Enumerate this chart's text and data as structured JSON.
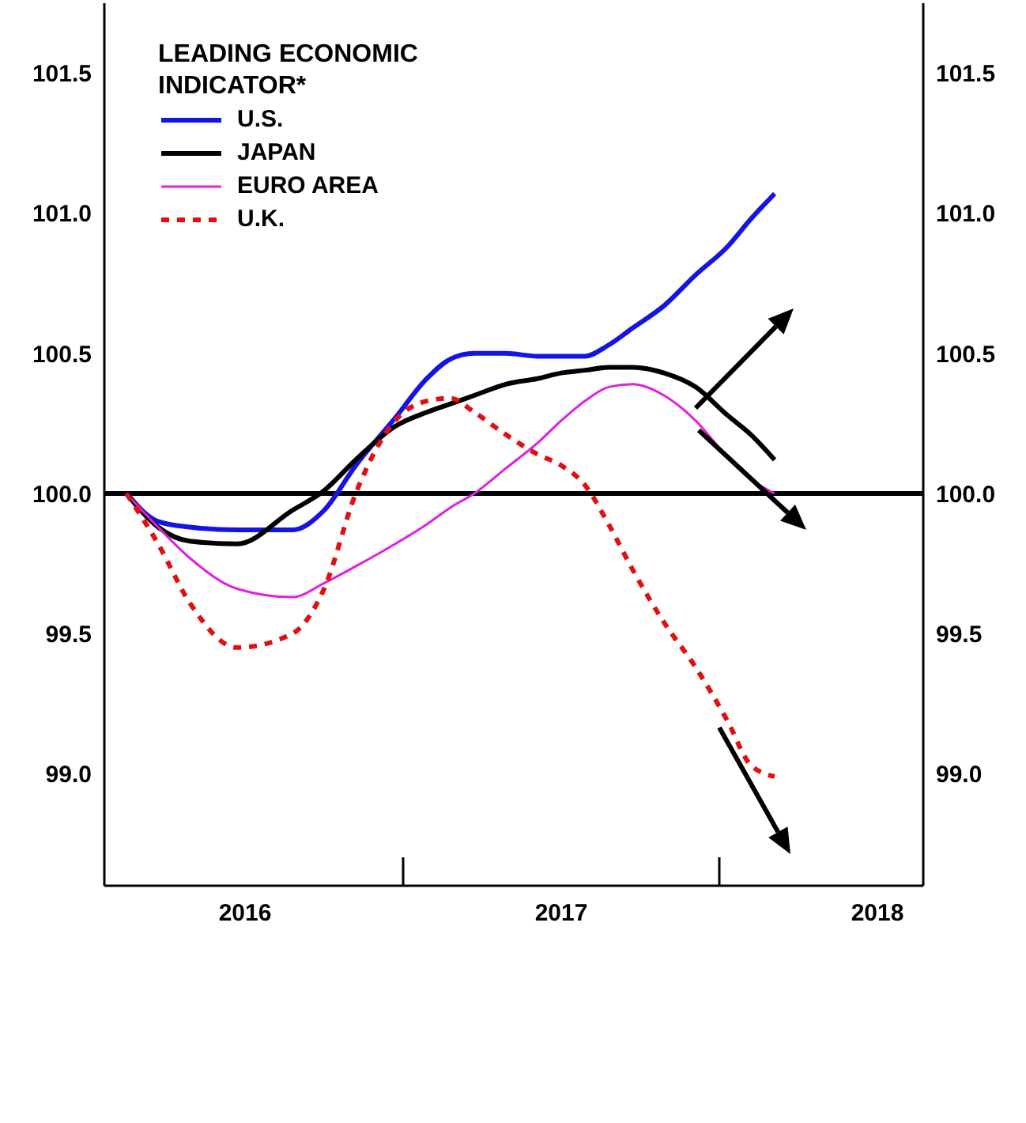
{
  "chart_data": {
    "type": "line",
    "legend_title": "LEADING ECONOMIC INDICATOR*",
    "legend": "top left",
    "marker": "none",
    "x": [
      2016.125,
      2016.225,
      2016.325,
      2016.475,
      2016.65,
      2016.75,
      2016.85,
      2016.975,
      2017.075,
      2017.15,
      2017.225,
      2017.325,
      2017.425,
      2017.5,
      2017.575,
      2017.65,
      2017.725,
      2017.825,
      2017.925,
      2018.025,
      2018.1,
      2018.175
    ],
    "series": [
      {
        "name": "U.S.",
        "color": "#1414e6",
        "values": [
          100.0,
          99.9,
          99.88,
          99.87,
          99.87,
          99.94,
          100.1,
          100.27,
          100.41,
          100.48,
          100.5,
          100.5,
          100.49,
          100.49,
          100.49,
          100.53,
          100.59,
          100.67,
          100.78,
          100.88,
          100.98,
          101.07
        ]
      },
      {
        "name": "JAPAN",
        "color": "#000000",
        "values": [
          100.0,
          99.88,
          99.83,
          99.82,
          99.94,
          100.01,
          100.12,
          100.24,
          100.29,
          100.32,
          100.35,
          100.39,
          100.41,
          100.43,
          100.44,
          100.45,
          100.45,
          100.43,
          100.38,
          100.28,
          100.21,
          100.12
        ]
      },
      {
        "name": "EURO AREA",
        "color": "#e020e0",
        "values": [
          100.0,
          99.88,
          99.77,
          99.66,
          99.63,
          99.68,
          99.74,
          99.82,
          99.89,
          99.95,
          100.0,
          100.09,
          100.18,
          100.26,
          100.33,
          100.38,
          100.39,
          100.35,
          100.26,
          100.13,
          100.05,
          100.0
        ]
      },
      {
        "name": "U.K.",
        "color": "#e01010",
        "line_style": "dashed",
        "values": [
          100.0,
          99.82,
          99.61,
          99.45,
          99.5,
          99.66,
          100.0,
          100.26,
          100.33,
          100.34,
          100.29,
          100.21,
          100.14,
          100.1,
          100.03,
          99.89,
          99.73,
          99.54,
          99.38,
          99.19,
          99.03,
          98.99
        ]
      }
    ],
    "xlim": [
      2016.055,
      2018.645
    ],
    "xticks": [
      {
        "value": 2016.5,
        "label": "2016"
      },
      {
        "value": 2017.5,
        "label": "2017"
      },
      {
        "value": 2018.5,
        "label": "2018"
      }
    ],
    "ylim": [
      98.6,
      101.75
    ],
    "yticks": [
      {
        "value": 99,
        "label": "99.0"
      },
      {
        "value": 99.5,
        "label": "99.5"
      },
      {
        "value": 100,
        "label": "100.0"
      },
      {
        "value": 100.5,
        "label": "100.5"
      },
      {
        "value": 101,
        "label": "101.0"
      },
      {
        "value": 101.5,
        "label": "101.5"
      }
    ],
    "y2lim": [
      98.6,
      101.75
    ],
    "y2ticks": [
      {
        "value": 99,
        "label": "99.0"
      },
      {
        "value": 99.5,
        "label": "99.5"
      },
      {
        "value": 100,
        "label": "100.0"
      },
      {
        "value": 100.5,
        "label": "100.5"
      },
      {
        "value": 101,
        "label": "101.0"
      },
      {
        "value": 101.5,
        "label": "101.5"
      }
    ],
    "ref_lines": [
      {
        "axis": "y",
        "value": 100,
        "color": "#000000"
      }
    ]
  }
}
